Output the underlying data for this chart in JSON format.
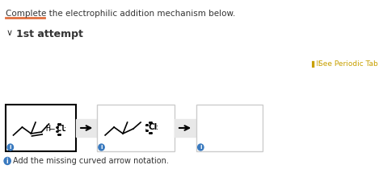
{
  "bg_color": "#f8f8f8",
  "white": "#ffffff",
  "gray_bg": "#e8e8e8",
  "black": "#000000",
  "dark_gray": "#333333",
  "light_gray": "#cccccc",
  "orange_line": "#e07040",
  "gold": "#c8a000",
  "title_text": "Complete the electrophilic addition mechanism below.",
  "attempt_text": "1st attempt",
  "periodic_text": "See Periodic Tab",
  "note_text": "Add the missing curved arrow notation.",
  "title_fontsize": 7.5,
  "attempt_fontsize": 9,
  "note_fontsize": 7
}
